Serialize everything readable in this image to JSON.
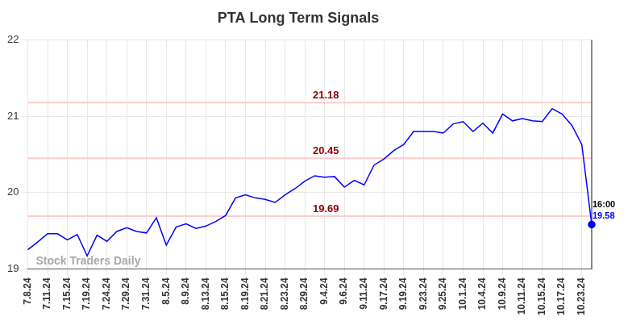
{
  "chart_data": {
    "type": "line",
    "title": "PTA Long Term Signals",
    "categories": [
      "7.8.24",
      null,
      "7.11.24",
      null,
      "7.15.24",
      null,
      "7.19.24",
      null,
      "7.24.24",
      null,
      "7.29.24",
      null,
      "7.31.24",
      null,
      "8.5.24",
      null,
      "8.9.24",
      null,
      "8.13.24",
      null,
      "8.15.24",
      null,
      "8.19.24",
      null,
      "8.21.24",
      null,
      "8.23.24",
      null,
      "8.29.24",
      null,
      "9.4.24",
      null,
      "9.6.24",
      null,
      "9.11.24",
      null,
      "9.17.24",
      null,
      "9.19.24",
      null,
      "9.23.24",
      null,
      "9.25.24",
      null,
      "10.1.24",
      null,
      "10.4.24",
      null,
      "10.9.24",
      null,
      "10.11.24",
      null,
      "10.15.24",
      null,
      "10.17.24",
      null,
      "10.23.24",
      null
    ],
    "values": [
      19.25,
      19.35,
      19.46,
      19.46,
      19.38,
      19.45,
      19.17,
      19.44,
      19.36,
      19.49,
      19.54,
      19.49,
      19.47,
      19.67,
      19.31,
      19.55,
      19.59,
      19.53,
      19.56,
      19.62,
      19.7,
      19.93,
      19.97,
      19.93,
      19.91,
      19.87,
      19.97,
      20.05,
      20.15,
      20.22,
      20.2,
      20.21,
      20.07,
      20.16,
      20.1,
      20.36,
      20.44,
      20.55,
      20.63,
      20.8,
      20.8,
      20.8,
      20.78,
      20.9,
      20.93,
      20.8,
      20.91,
      20.78,
      21.03,
      20.94,
      20.97,
      20.94,
      20.93,
      21.1,
      21.03,
      20.88,
      20.63,
      19.58
    ],
    "color": "#0000ff",
    "ylim": [
      19,
      22
    ],
    "yticks": [
      19,
      20,
      21,
      22
    ],
    "grid": true,
    "annotations": [
      {
        "value": 21.18,
        "label": "21.18"
      },
      {
        "value": 20.45,
        "label": "20.45"
      },
      {
        "value": 19.69,
        "label": "19.69"
      }
    ],
    "last_time": "16:00",
    "last_value_label": "19.58",
    "watermark": "Stock Traders Daily"
  }
}
